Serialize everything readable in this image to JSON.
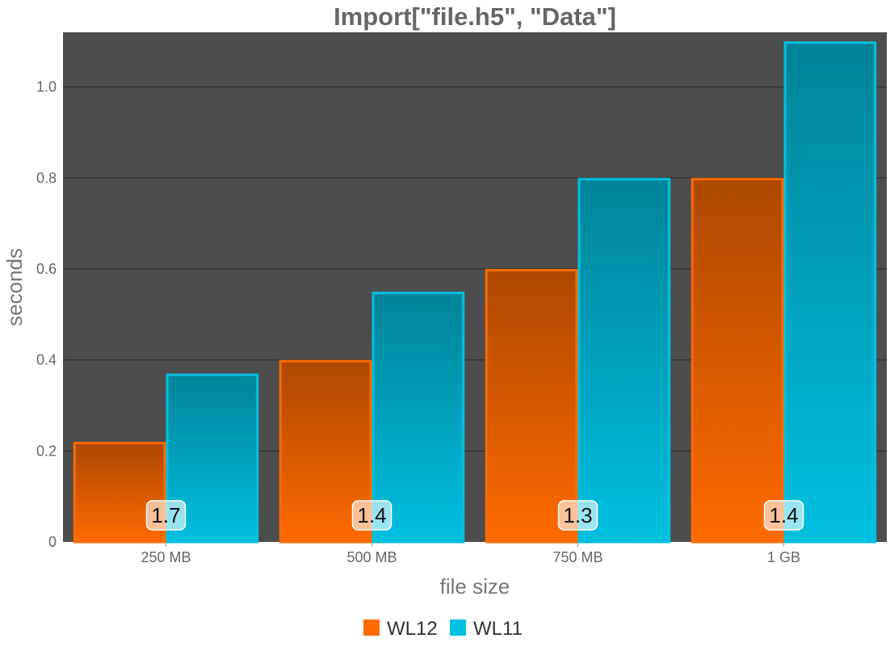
{
  "chart_data": {
    "type": "bar",
    "title": "Import[\"file.h5\", \"Data\"]",
    "xlabel": "file size",
    "ylabel": "seconds",
    "categories": [
      "250 MB",
      "500 MB",
      "750 MB",
      "1 GB"
    ],
    "series": [
      {
        "name": "WL12",
        "values": [
          0.22,
          0.4,
          0.6,
          0.8
        ],
        "color": "#ff6a00"
      },
      {
        "name": "WL11",
        "values": [
          0.37,
          0.55,
          0.8,
          1.1
        ],
        "color": "#00c0e0"
      }
    ],
    "ratio_labels": [
      "1.7",
      "1.4",
      "1.3",
      "1.4"
    ],
    "ylim": [
      0,
      1.12
    ],
    "yticks": [
      {
        "value": 0,
        "label": "0"
      },
      {
        "value": 0.2,
        "label": "0.2"
      },
      {
        "value": 0.4,
        "label": "0.4"
      },
      {
        "value": 0.6,
        "label": "0.6"
      },
      {
        "value": 0.8,
        "label": "0.8"
      },
      {
        "value": 1.0,
        "label": "1.0"
      }
    ],
    "grid": true,
    "legend_position": "bottom",
    "plot_background": "#4d4d4d"
  }
}
